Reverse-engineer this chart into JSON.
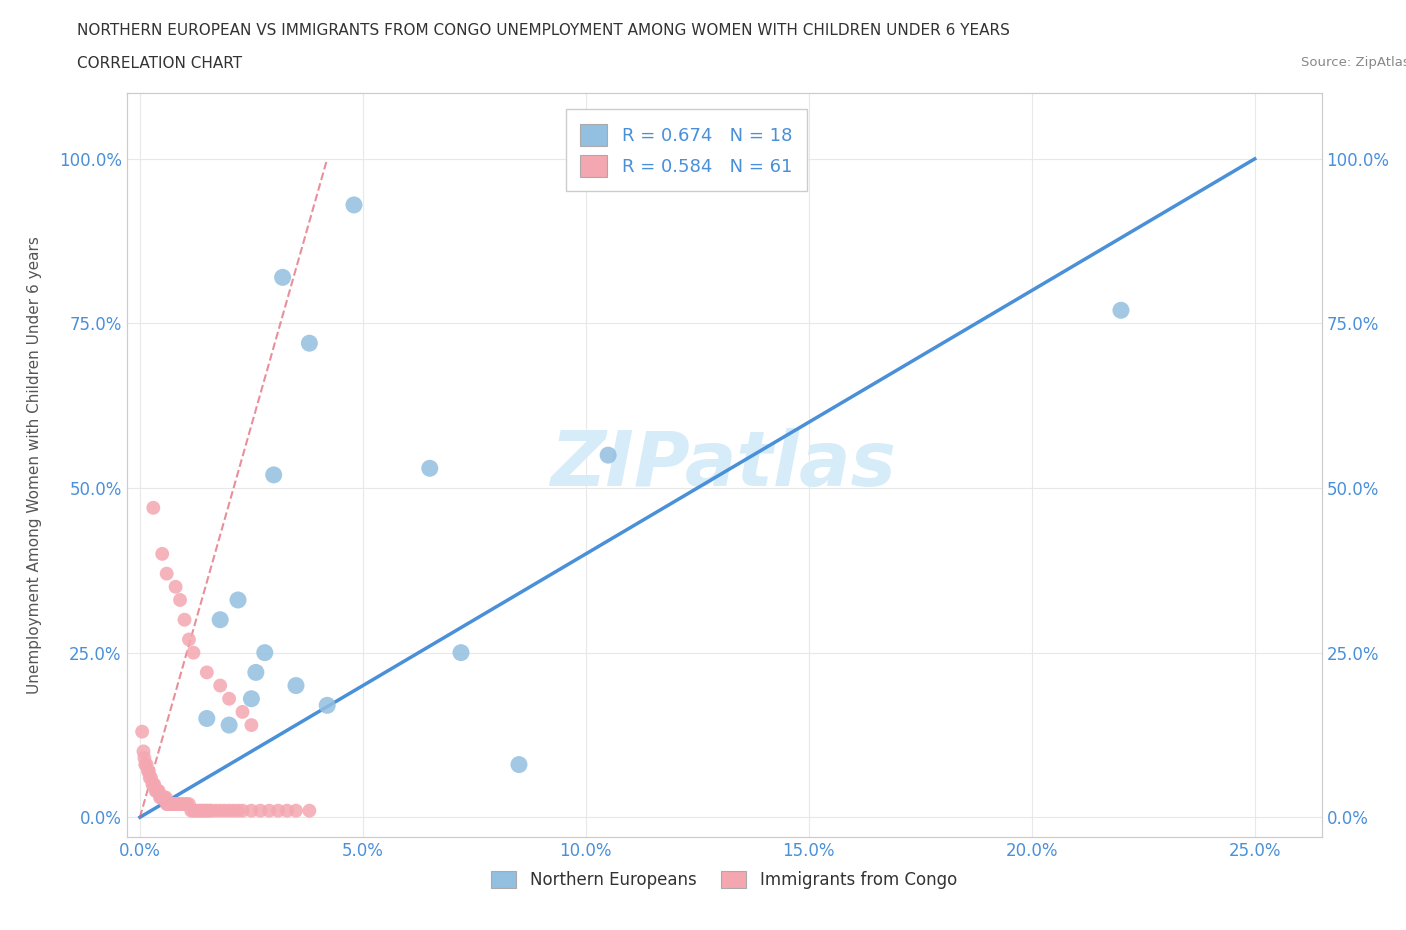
{
  "title_line1": "NORTHERN EUROPEAN VS IMMIGRANTS FROM CONGO UNEMPLOYMENT AMONG WOMEN WITH CHILDREN UNDER 6 YEARS",
  "title_line2": "CORRELATION CHART",
  "source_text": "Source: ZipAtlas.com",
  "xlabel_ticks": [
    "0.0%",
    "5.0%",
    "10.0%",
    "15.0%",
    "20.0%",
    "25.0%"
  ],
  "ylabel_ticks": [
    "0.0%",
    "25.0%",
    "50.0%",
    "75.0%",
    "100.0%"
  ],
  "xlabel_values": [
    0,
    5,
    10,
    15,
    20,
    25
  ],
  "ylabel_values": [
    0,
    25,
    50,
    75,
    100
  ],
  "xlim": [
    -0.3,
    26.5
  ],
  "ylim": [
    -3,
    110
  ],
  "blue_scatter_x": [
    4.8,
    3.2,
    3.8,
    10.5,
    3.0,
    2.2,
    1.8,
    2.8,
    6.5,
    3.5,
    2.5,
    4.2,
    1.5,
    2.0,
    7.2,
    2.6,
    22.0,
    8.5
  ],
  "blue_scatter_y": [
    93,
    82,
    72,
    55,
    52,
    33,
    30,
    25,
    53,
    20,
    18,
    17,
    15,
    14,
    25,
    22,
    77,
    8
  ],
  "pink_scatter_x": [
    0.05,
    0.08,
    0.1,
    0.12,
    0.15,
    0.18,
    0.2,
    0.22,
    0.25,
    0.28,
    0.3,
    0.32,
    0.35,
    0.38,
    0.4,
    0.42,
    0.45,
    0.48,
    0.5,
    0.52,
    0.55,
    0.58,
    0.6,
    0.62,
    0.65,
    0.68,
    0.7,
    0.72,
    0.75,
    0.78,
    0.8,
    0.85,
    0.9,
    0.95,
    1.0,
    1.05,
    1.1,
    1.15,
    1.2,
    1.25,
    1.3,
    1.35,
    1.4,
    1.45,
    1.5,
    1.55,
    1.6,
    1.7,
    1.8,
    1.9,
    2.0,
    2.1,
    2.2,
    2.3,
    2.5,
    2.7,
    2.9,
    3.1,
    3.3,
    3.5,
    3.8
  ],
  "pink_scatter_y": [
    13,
    10,
    9,
    8,
    8,
    7,
    7,
    6,
    6,
    5,
    5,
    5,
    4,
    4,
    4,
    4,
    3,
    3,
    3,
    3,
    3,
    3,
    2,
    2,
    2,
    2,
    2,
    2,
    2,
    2,
    2,
    2,
    2,
    2,
    2,
    2,
    2,
    1,
    1,
    1,
    1,
    1,
    1,
    1,
    1,
    1,
    1,
    1,
    1,
    1,
    1,
    1,
    1,
    1,
    1,
    1,
    1,
    1,
    1,
    1,
    1
  ],
  "pink_scatter_extra_x": [
    0.3,
    0.5,
    0.6,
    0.8,
    0.9,
    1.0,
    1.1,
    1.2,
    1.5,
    1.8,
    2.0,
    2.3,
    2.5
  ],
  "pink_scatter_extra_y": [
    47,
    40,
    37,
    35,
    33,
    30,
    27,
    25,
    22,
    20,
    18,
    16,
    14
  ],
  "blue_line_x": [
    0,
    25
  ],
  "blue_line_y": [
    0,
    100
  ],
  "pink_line_x": [
    0,
    4.2
  ],
  "pink_line_y": [
    0,
    100
  ],
  "blue_color": "#93bfe0",
  "pink_color": "#f4a7b0",
  "blue_line_color": "#4a90d9",
  "pink_line_color": "#e06070",
  "watermark_color": "#d6ecf8",
  "watermark_text": "ZIPatlas",
  "R_blue": 0.674,
  "N_blue": 18,
  "R_pink": 0.584,
  "N_pink": 61,
  "ylabel": "Unemployment Among Women with Children Under 6 years",
  "grid_color": "#e8e8e8",
  "background_color": "#ffffff"
}
